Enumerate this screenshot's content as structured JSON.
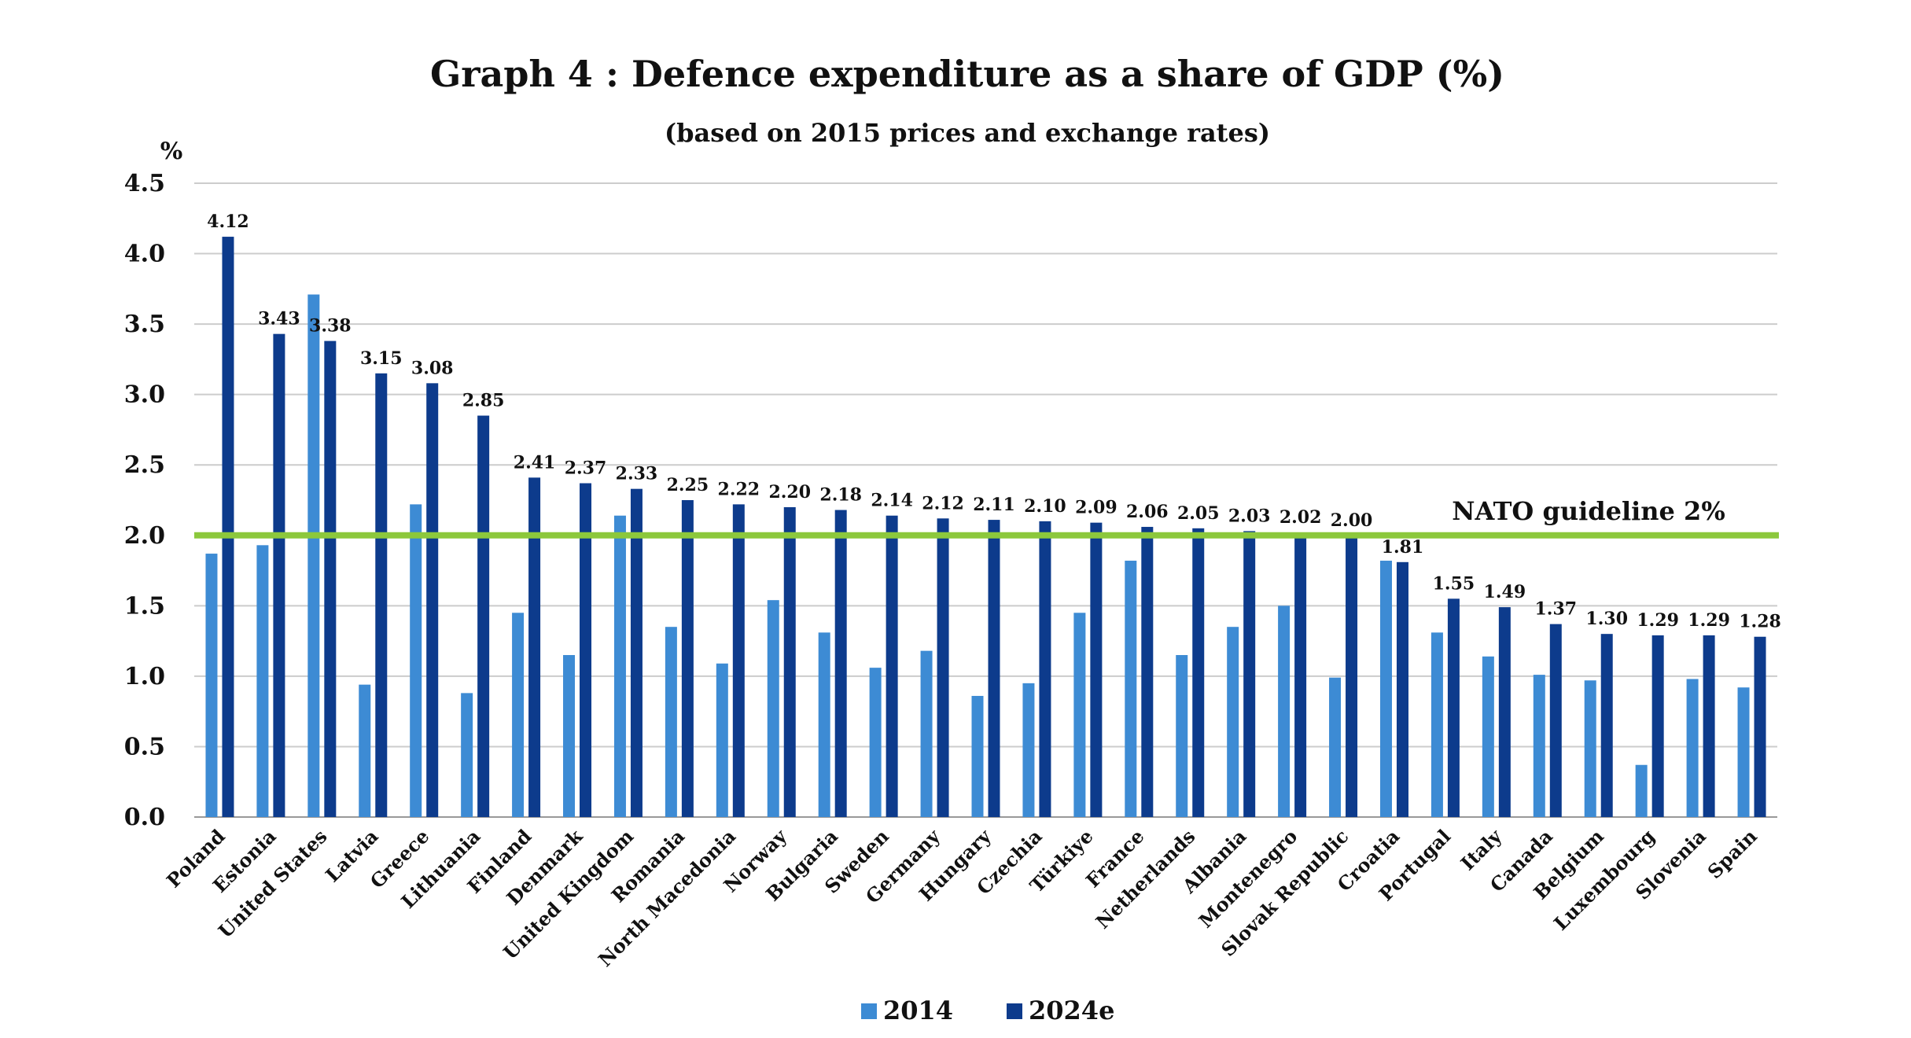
{
  "chart_data": {
    "type": "bar",
    "title": "Graph 4 : Defence expenditure as a share of GDP (%)",
    "subtitle": "(based on 2015 prices and exchange rates)",
    "ylabel": "%",
    "ylim": [
      0,
      4.5
    ],
    "yticks": [
      "0.0",
      "0.5",
      "1.0",
      "1.5",
      "2.0",
      "2.5",
      "3.0",
      "3.5",
      "4.0",
      "4.5"
    ],
    "ytick_values": [
      0,
      0.5,
      1.0,
      1.5,
      2.0,
      2.5,
      3.0,
      3.5,
      4.0,
      4.5
    ],
    "grid": true,
    "legend_position": "bottom",
    "categories": [
      "Poland",
      "Estonia",
      "United States",
      "Latvia",
      "Greece",
      "Lithuania",
      "Finland",
      "Denmark",
      "United Kingdom",
      "Romania",
      "North Macedonia",
      "Norway",
      "Bulgaria",
      "Sweden",
      "Germany",
      "Hungary",
      "Czechia",
      "Türkiye",
      "France",
      "Netherlands",
      "Albania",
      "Montenegro",
      "Slovak Republic",
      "Croatia",
      "Portugal",
      "Italy",
      "Canada",
      "Belgium",
      "Luxembourg",
      "Slovenia",
      "Spain"
    ],
    "series": [
      {
        "name": "2014",
        "color": "#3d8bd4",
        "values": [
          1.87,
          1.93,
          3.71,
          0.94,
          2.22,
          0.88,
          1.45,
          1.15,
          2.14,
          1.35,
          1.09,
          1.54,
          1.31,
          1.06,
          1.18,
          0.86,
          0.95,
          1.45,
          1.82,
          1.15,
          1.35,
          1.5,
          0.99,
          1.82,
          1.31,
          1.14,
          1.01,
          0.97,
          0.37,
          0.98,
          0.92
        ]
      },
      {
        "name": "2024e",
        "color": "#0d3b8c",
        "values": [
          4.12,
          3.43,
          3.38,
          3.15,
          3.08,
          2.85,
          2.41,
          2.37,
          2.33,
          2.25,
          2.22,
          2.2,
          2.18,
          2.14,
          2.12,
          2.11,
          2.1,
          2.09,
          2.06,
          2.05,
          2.03,
          2.02,
          2.0,
          1.81,
          1.55,
          1.49,
          1.37,
          1.3,
          1.29,
          1.29,
          1.28
        ],
        "labels": [
          "4.12",
          "3.43",
          "3.38",
          "3.15",
          "3.08",
          "2.85",
          "2.41",
          "2.37",
          "2.33",
          "2.25",
          "2.22",
          "2.20",
          "2.18",
          "2.14",
          "2.12",
          "2.11",
          "2.10",
          "2.09",
          "2.06",
          "2.05",
          "2.03",
          "2.02",
          "2.00",
          "1.81",
          "1.55",
          "1.49",
          "1.37",
          "1.30",
          "1.29",
          "1.29",
          "1.28"
        ]
      }
    ],
    "reference_line": {
      "value": 2.0,
      "label": "NATO guideline 2%",
      "color": "#8cc83c"
    },
    "grid_color": "#cccccc",
    "axis_color": "#999999"
  }
}
